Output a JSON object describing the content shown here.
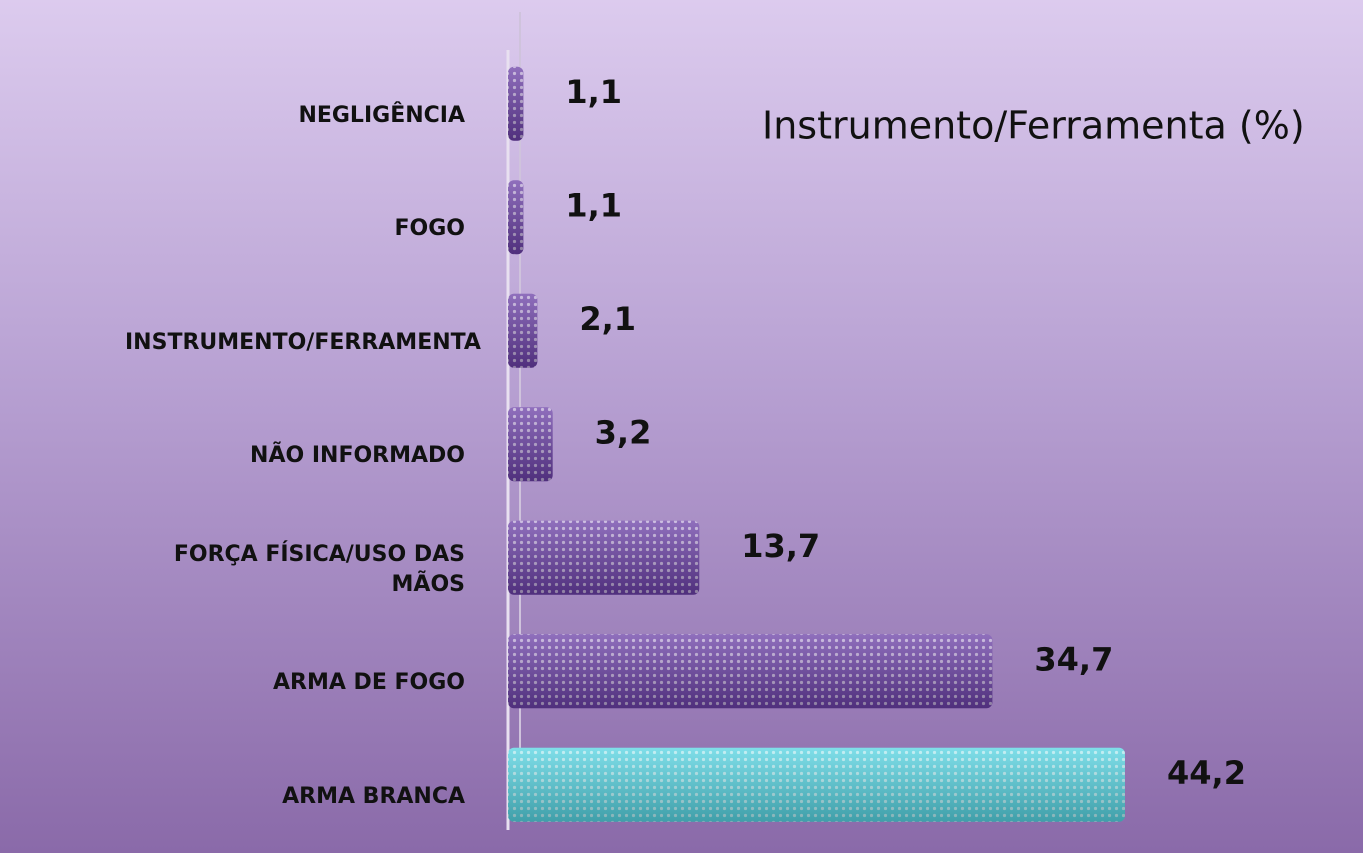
{
  "chart_data": {
    "type": "barh",
    "title": "Instrumento/Ferramenta (%)",
    "categories": [
      "NEGLIGÊNCIA",
      "FOGO",
      "INSTRUMENTO/FERRAMENTA",
      "NÃO INFORMADO",
      "FORÇA FÍSICA/USO DAS MÃOS",
      "ARMA DE FOGO",
      "ARMA BRANCA"
    ],
    "values": [
      1.1,
      1.1,
      2.1,
      3.2,
      13.7,
      34.7,
      44.2
    ],
    "value_labels": [
      "1,1",
      "1,1",
      "2,1",
      "3,2",
      "13,7",
      "34,7",
      "44,2"
    ],
    "colors": [
      "#6a3fa6",
      "#6a3fa6",
      "#6a3fa6",
      "#6a3fa6",
      "#6a3fa6",
      "#6a3fa6",
      "#55d4e2"
    ]
  }
}
